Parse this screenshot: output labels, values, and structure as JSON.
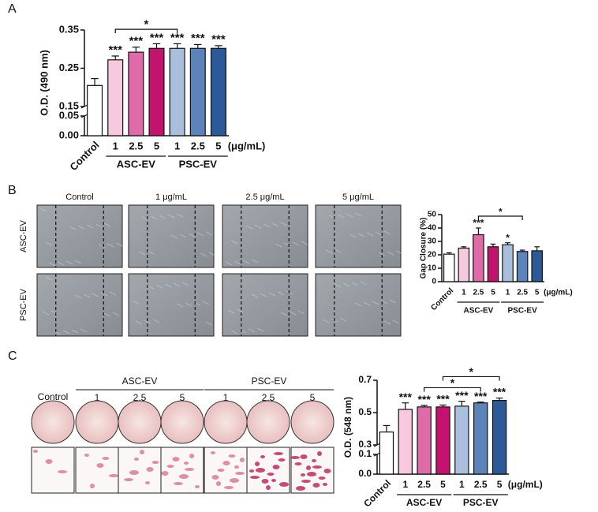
{
  "panel_labels": [
    "A",
    "B",
    "C"
  ],
  "panel_b_images": {
    "columns": [
      "Control",
      "1 μg/mL",
      "2.5 μg/mL",
      "5 μg/mL"
    ],
    "rows": [
      "ASC-EV",
      "PSC-EV"
    ]
  },
  "panel_c_images": {
    "control": "Control",
    "groups": [
      {
        "name": "ASC-EV",
        "concentrations": [
          "1",
          "2.5",
          "5"
        ]
      },
      {
        "name": "PSC-EV",
        "concentrations": [
          "1",
          "2.5",
          "5"
        ]
      }
    ]
  },
  "chart_data": [
    {
      "type": "bar",
      "ylabel": "O.D. (490 nm)",
      "categories": [
        "Control",
        "1",
        "2.5",
        "5",
        "1",
        "2.5",
        "5"
      ],
      "groups": [
        {
          "name": "ASC-EV",
          "span": [
            1,
            3
          ]
        },
        {
          "name": "PSC-EV",
          "span": [
            4,
            6
          ]
        }
      ],
      "x_unit": "(μg/mL)",
      "values": [
        0.205,
        0.272,
        0.292,
        0.302,
        0.302,
        0.302,
        0.302
      ],
      "errors": [
        0.018,
        0.01,
        0.013,
        0.012,
        0.012,
        0.01,
        0.007
      ],
      "colors": [
        "#ffffff",
        "#f6c9de",
        "#df6ba8",
        "#c4136f",
        "#a9bfdc",
        "#5d84b9",
        "#2b5a96"
      ],
      "ylim": [
        0,
        0.35
      ],
      "ybreak": [
        0.05,
        0.15
      ],
      "yticks": [
        {
          "value": 0,
          "label": "0.00"
        },
        0.05,
        0.15,
        0.25,
        0.35
      ],
      "annotations": [
        {
          "category": 1,
          "text": "***"
        },
        {
          "category": 2,
          "text": "***"
        },
        {
          "category": 3,
          "text": "***"
        },
        {
          "category": 4,
          "text": "***"
        },
        {
          "category": 5,
          "text": "***"
        },
        {
          "category": 6,
          "text": "***"
        }
      ],
      "brackets": [
        {
          "from": 1,
          "to": 4,
          "text": "*"
        }
      ]
    },
    {
      "type": "bar",
      "ylabel": "Gap Closure (%)",
      "categories": [
        "Control",
        "1",
        "2.5",
        "5",
        "1",
        "2.5",
        "5"
      ],
      "groups": [
        {
          "name": "ASC-EV",
          "span": [
            1,
            3
          ]
        },
        {
          "name": "PSC-EV",
          "span": [
            4,
            6
          ]
        }
      ],
      "x_unit": "(μg/mL)",
      "values": [
        20.5,
        25,
        35,
        26,
        27.5,
        22.5,
        23
      ],
      "errors": [
        1,
        1,
        5,
        2,
        1.5,
        1,
        3
      ],
      "colors": [
        "#ffffff",
        "#f6c9de",
        "#df6ba8",
        "#c4136f",
        "#a9bfdc",
        "#5d84b9",
        "#2b5a96"
      ],
      "ylim": [
        0,
        50
      ],
      "yticks": [
        0,
        10,
        20,
        30,
        40,
        50
      ],
      "annotations": [
        {
          "category": 2,
          "text": "***"
        },
        {
          "category": 4,
          "text": "*"
        }
      ],
      "brackets": [
        {
          "from": 2,
          "to": 5,
          "text": "*"
        }
      ]
    },
    {
      "type": "bar",
      "ylabel": "O.D. (548 nm)",
      "categories": [
        "Control",
        "1",
        "2.5",
        "5",
        "1",
        "2.5",
        "5"
      ],
      "groups": [
        {
          "name": "ASC-EV",
          "span": [
            1,
            3
          ]
        },
        {
          "name": "PSC-EV",
          "span": [
            4,
            6
          ]
        }
      ],
      "x_unit": "(μg/mL)",
      "values": [
        0.38,
        0.52,
        0.535,
        0.535,
        0.54,
        0.56,
        0.575
      ],
      "errors": [
        0.04,
        0.04,
        0.01,
        0.012,
        0.03,
        0.005,
        0.015
      ],
      "colors": [
        "#ffffff",
        "#f6c9de",
        "#df6ba8",
        "#c4136f",
        "#a9bfdc",
        "#5d84b9",
        "#2b5a96"
      ],
      "ylim": [
        0,
        0.7
      ],
      "ybreak": [
        0.1,
        0.3
      ],
      "yticks": [
        {
          "value": 0,
          "label": "0.0"
        },
        0.1,
        0.3,
        0.5,
        0.7
      ],
      "annotations": [
        {
          "category": 1,
          "text": "***"
        },
        {
          "category": 2,
          "text": "***"
        },
        {
          "category": 3,
          "text": "***"
        },
        {
          "category": 4,
          "text": "***"
        },
        {
          "category": 5,
          "text": "***"
        },
        {
          "category": 6,
          "text": "***"
        }
      ],
      "brackets": [
        {
          "from": 2,
          "to": 5,
          "text": "*"
        },
        {
          "from": 3,
          "to": 6,
          "text": "*"
        }
      ]
    }
  ]
}
